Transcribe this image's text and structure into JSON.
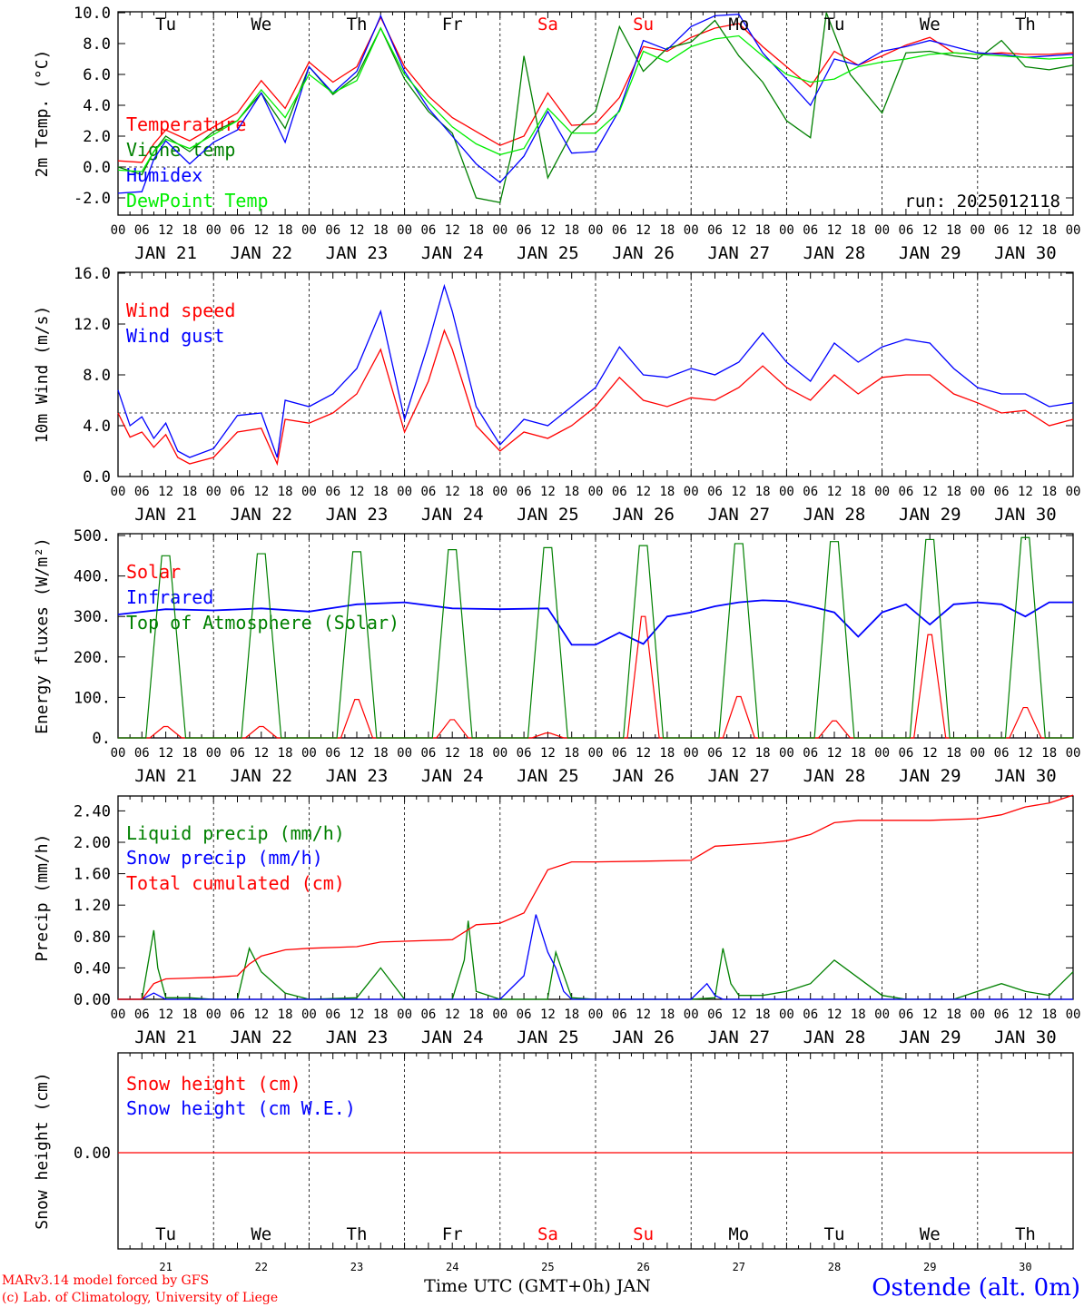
{
  "run_label": "run: 2025012118",
  "footer": {
    "model": "MARv3.14 model forced by GFS",
    "credit": "(c) Lab. of Climatology, University of Liege",
    "xaxis": "Time UTC (GMT+0h) JAN",
    "station": "Ostende (alt. 0m)"
  },
  "colors": {
    "red": "#ff0000",
    "green": "#008000",
    "blue": "#0000ff",
    "lime": "#00ee00"
  },
  "days": {
    "abbr": [
      "Tu",
      "We",
      "Th",
      "Fr",
      "Sa",
      "Su",
      "Mo",
      "Tu",
      "We",
      "Th"
    ],
    "weekend": [
      false,
      false,
      false,
      false,
      true,
      true,
      false,
      false,
      false,
      false
    ],
    "dates": [
      "JAN 21",
      "JAN 22",
      "JAN 23",
      "JAN 24",
      "JAN 25",
      "JAN 26",
      "JAN 27",
      "JAN 28",
      "JAN 29",
      "JAN 30"
    ],
    "numbers": [
      "21",
      "22",
      "23",
      "24",
      "25",
      "26",
      "27",
      "28",
      "29",
      "30"
    ],
    "hour_ticks": [
      "00",
      "06",
      "12",
      "18"
    ],
    "final_tick": "00"
  },
  "chart_data": [
    {
      "type": "line",
      "ylabel": "2m Temp. (°C)",
      "ylim": [
        -3,
        10
      ],
      "yticks": [
        "10.0",
        "8.0",
        "6.0",
        "4.0",
        "2.0",
        "0.0",
        "-2.0"
      ],
      "ytick_values": [
        10,
        8,
        6,
        4,
        2,
        0,
        -2
      ],
      "x_unit": "hours since JAN 21 00 UTC",
      "reference_line": 0,
      "series": [
        {
          "name": "Temperature",
          "color": "red",
          "x": [
            0,
            6,
            9,
            12,
            18,
            24,
            30,
            36,
            42,
            48,
            54,
            60,
            66,
            72,
            78,
            84,
            90,
            96,
            102,
            108,
            114,
            120,
            126,
            132,
            138,
            144,
            150,
            156,
            162,
            168,
            174,
            180,
            186,
            192,
            198,
            204,
            210,
            216,
            222,
            228,
            234,
            240
          ],
          "y": [
            0.4,
            0.3,
            1.5,
            2.4,
            1.7,
            2.6,
            3.5,
            5.6,
            3.8,
            6.8,
            5.5,
            6.5,
            9.7,
            6.5,
            4.6,
            3.2,
            2.3,
            1.4,
            2.0,
            4.8,
            2.7,
            2.8,
            4.5,
            7.8,
            7.5,
            8.4,
            9.0,
            9.3,
            7.8,
            6.5,
            5.2,
            7.5,
            6.6,
            7.2,
            7.9,
            8.4,
            7.4,
            7.3,
            7.4,
            7.3,
            7.3,
            7.4
          ]
        },
        {
          "name": "Vigne temp",
          "color": "green",
          "x": [
            0,
            6,
            9,
            12,
            18,
            24,
            30,
            36,
            42,
            48,
            54,
            60,
            66,
            72,
            78,
            84,
            90,
            96,
            99,
            102,
            108,
            114,
            120,
            126,
            132,
            138,
            144,
            150,
            156,
            162,
            168,
            174,
            178,
            184,
            192,
            198,
            204,
            210,
            216,
            222,
            228,
            234,
            240
          ],
          "y": [
            0.0,
            -0.5,
            1.0,
            2.0,
            1.0,
            2.3,
            3.0,
            4.8,
            2.5,
            6.5,
            4.7,
            5.9,
            9.0,
            5.7,
            3.6,
            2.2,
            -2.0,
            -2.3,
            1.0,
            7.2,
            -0.7,
            2.2,
            3.6,
            9.1,
            6.2,
            7.7,
            8.1,
            9.5,
            7.2,
            5.5,
            3.0,
            1.9,
            10.0,
            6.0,
            3.5,
            7.4,
            7.5,
            7.2,
            7.0,
            8.2,
            6.5,
            6.3,
            6.6
          ]
        },
        {
          "name": "Humidex",
          "color": "blue",
          "x": [
            0,
            6,
            9,
            12,
            18,
            24,
            30,
            36,
            42,
            48,
            54,
            60,
            66,
            72,
            78,
            84,
            90,
            96,
            102,
            108,
            114,
            120,
            126,
            132,
            138,
            144,
            150,
            156,
            162,
            168,
            174,
            180,
            186,
            192,
            198,
            204,
            210,
            216,
            222,
            228,
            234,
            240
          ],
          "y": [
            -1.7,
            -1.6,
            0.5,
            1.7,
            0.2,
            1.6,
            2.4,
            4.8,
            1.6,
            6.5,
            4.8,
            6.2,
            9.8,
            6.2,
            3.8,
            2.0,
            0.2,
            -1.0,
            0.7,
            3.6,
            0.9,
            1.0,
            3.7,
            8.2,
            7.6,
            9.1,
            9.8,
            9.9,
            7.4,
            5.7,
            4.0,
            7.0,
            6.6,
            7.5,
            7.8,
            8.2,
            7.8,
            7.4,
            7.3,
            7.1,
            7.2,
            7.3
          ]
        },
        {
          "name": "DewPoint Temp",
          "color": "lime",
          "x": [
            0,
            6,
            9,
            12,
            18,
            24,
            30,
            36,
            42,
            48,
            54,
            60,
            66,
            72,
            78,
            84,
            90,
            96,
            102,
            108,
            114,
            120,
            126,
            132,
            138,
            144,
            150,
            156,
            162,
            168,
            174,
            180,
            186,
            192,
            198,
            204,
            210,
            216,
            222,
            228,
            234,
            240
          ],
          "y": [
            -0.2,
            -0.3,
            1.0,
            1.8,
            1.2,
            2.1,
            3.0,
            5.0,
            3.2,
            6.0,
            4.8,
            5.6,
            9.0,
            6.0,
            4.2,
            2.6,
            1.5,
            0.8,
            1.2,
            3.8,
            2.2,
            2.2,
            3.6,
            7.5,
            6.8,
            7.8,
            8.3,
            8.5,
            7.2,
            6.0,
            5.5,
            5.7,
            6.5,
            6.8,
            7.0,
            7.3,
            7.4,
            7.3,
            7.2,
            7.1,
            7.0,
            7.1
          ]
        }
      ]
    },
    {
      "type": "line",
      "ylabel": "10m Wind (m/s)",
      "ylim": [
        0,
        16
      ],
      "yticks": [
        "16.0",
        "12.0",
        "8.0",
        "4.0",
        "0.0"
      ],
      "ytick_values": [
        16,
        12,
        8,
        4,
        0
      ],
      "x_unit": "hours since JAN 21 00 UTC",
      "reference_line": 5,
      "series": [
        {
          "name": "Wind speed",
          "color": "red",
          "x": [
            0,
            3,
            6,
            9,
            12,
            15,
            18,
            24,
            30,
            36,
            40,
            42,
            48,
            54,
            60,
            66,
            72,
            78,
            82,
            84,
            88,
            90,
            96,
            102,
            108,
            114,
            120,
            126,
            132,
            138,
            144,
            150,
            156,
            162,
            168,
            174,
            180,
            186,
            192,
            198,
            204,
            210,
            216,
            222,
            228,
            234,
            240
          ],
          "y": [
            5.0,
            3.1,
            3.5,
            2.3,
            3.3,
            1.5,
            1.0,
            1.5,
            3.5,
            3.8,
            1.0,
            4.5,
            4.2,
            5.0,
            6.5,
            10.0,
            3.5,
            7.5,
            11.5,
            10.0,
            6.0,
            4.0,
            2.0,
            3.5,
            3.0,
            4.0,
            5.5,
            7.8,
            6.0,
            5.5,
            6.2,
            6.0,
            7.0,
            8.7,
            7.0,
            6.0,
            8.0,
            6.5,
            7.8,
            8.0,
            8.0,
            6.5,
            5.8,
            5.0,
            5.2,
            4.0,
            4.5
          ]
        },
        {
          "name": "Wind gust",
          "color": "blue",
          "x": [
            0,
            3,
            6,
            9,
            12,
            15,
            18,
            24,
            30,
            36,
            40,
            42,
            48,
            54,
            60,
            66,
            72,
            78,
            82,
            84,
            88,
            90,
            96,
            102,
            108,
            114,
            120,
            126,
            132,
            138,
            144,
            150,
            156,
            162,
            168,
            174,
            180,
            186,
            192,
            198,
            204,
            210,
            216,
            222,
            228,
            234,
            240
          ],
          "y": [
            6.8,
            4.0,
            4.7,
            3.0,
            4.2,
            2.0,
            1.5,
            2.2,
            4.8,
            5.0,
            1.5,
            6.0,
            5.5,
            6.5,
            8.5,
            13.0,
            4.5,
            10.5,
            15.0,
            13.0,
            8.0,
            5.5,
            2.5,
            4.5,
            4.0,
            5.5,
            7.0,
            10.2,
            8.0,
            7.8,
            8.5,
            8.0,
            9.0,
            11.3,
            9.0,
            7.5,
            10.5,
            9.0,
            10.2,
            10.8,
            10.5,
            8.5,
            7.0,
            6.5,
            6.5,
            5.5,
            5.8
          ]
        }
      ]
    },
    {
      "type": "line",
      "ylabel": "Energy fluxes (W/m²)",
      "ylim": [
        0,
        500
      ],
      "yticks": [
        "500.",
        "400.",
        "300.",
        "200.",
        "100.",
        "0."
      ],
      "ytick_values": [
        500,
        400,
        300,
        200,
        100,
        0
      ],
      "x_unit": "hours since JAN 21 00 UTC",
      "series": [
        {
          "name": "Solar",
          "color": "red",
          "peaks": [
            28,
            28,
            95,
            45,
            12,
            300,
            102,
            42,
            255,
            75
          ]
        },
        {
          "name": "Infrared",
          "color": "blue",
          "x": [
            0,
            12,
            24,
            36,
            48,
            60,
            72,
            84,
            96,
            108,
            114,
            120,
            126,
            132,
            138,
            144,
            150,
            156,
            162,
            168,
            174,
            180,
            186,
            192,
            198,
            204,
            210,
            216,
            222,
            228,
            234,
            240
          ],
          "y": [
            305,
            318,
            315,
            320,
            312,
            330,
            335,
            320,
            318,
            320,
            230,
            230,
            260,
            232,
            300,
            310,
            325,
            335,
            340,
            338,
            325,
            310,
            250,
            310,
            330,
            280,
            330,
            335,
            330,
            300,
            335,
            335
          ]
        },
        {
          "name": "Top of Atmosphere (Solar)",
          "color": "green",
          "peaks": [
            450,
            455,
            460,
            465,
            470,
            475,
            480,
            485,
            490,
            495
          ]
        }
      ]
    },
    {
      "type": "line",
      "ylabel": "Precip (mm/h)",
      "ylim": [
        0,
        2.6
      ],
      "yticks": [
        "2.40",
        "2.00",
        "1.60",
        "1.20",
        "0.80",
        "0.40",
        "0.00"
      ],
      "ytick_values": [
        2.4,
        2.0,
        1.6,
        1.2,
        0.8,
        0.4,
        0.0
      ],
      "x_unit": "hours since JAN 21 00 UTC",
      "series": [
        {
          "name": "Liquid precip (mm/h)",
          "color": "green",
          "x": [
            0,
            6,
            9,
            10,
            12,
            18,
            24,
            30,
            33,
            36,
            42,
            48,
            60,
            66,
            72,
            84,
            87,
            88,
            90,
            96,
            102,
            108,
            108,
            110,
            114,
            120,
            144,
            150,
            152,
            154,
            156,
            162,
            168,
            174,
            180,
            192,
            198,
            204,
            210,
            216,
            222,
            228,
            234,
            240
          ],
          "y": [
            0,
            0,
            0.88,
            0.4,
            0.02,
            0.02,
            0,
            0,
            0.65,
            0.35,
            0.08,
            0,
            0.02,
            0.4,
            0,
            0,
            0.5,
            1.0,
            0.1,
            0,
            0,
            0,
            0.02,
            0.6,
            0.02,
            0,
            0,
            0.02,
            0.65,
            0.2,
            0.05,
            0.05,
            0.1,
            0.2,
            0.5,
            0.05,
            0,
            0,
            0,
            0.1,
            0.2,
            0.1,
            0.05,
            0.35
          ]
        },
        {
          "name": "Snow precip (mm/h)",
          "color": "blue",
          "x": [
            0,
            6,
            9,
            12,
            24,
            84,
            96,
            102,
            105,
            108,
            110,
            112,
            114,
            120,
            144,
            148,
            150,
            152,
            240
          ],
          "y": [
            0,
            0,
            0.08,
            0,
            0,
            0,
            0,
            0.3,
            1.08,
            0.6,
            0.4,
            0.1,
            0,
            0,
            0,
            0.2,
            0.05,
            0,
            0
          ]
        },
        {
          "name": "Total cumulated (cm)",
          "color": "red",
          "x": [
            0,
            6,
            9,
            12,
            18,
            24,
            30,
            33,
            36,
            42,
            48,
            60,
            66,
            72,
            84,
            90,
            96,
            102,
            108,
            114,
            120,
            132,
            144,
            150,
            156,
            162,
            168,
            174,
            180,
            186,
            192,
            204,
            216,
            222,
            228,
            234,
            240
          ],
          "y": [
            0,
            0,
            0.2,
            0.26,
            0.27,
            0.28,
            0.3,
            0.45,
            0.55,
            0.63,
            0.65,
            0.67,
            0.73,
            0.74,
            0.76,
            0.95,
            0.97,
            1.1,
            1.65,
            1.75,
            1.75,
            1.76,
            1.77,
            1.95,
            1.97,
            1.99,
            2.02,
            2.1,
            2.25,
            2.28,
            2.28,
            2.28,
            2.3,
            2.35,
            2.45,
            2.5,
            2.6
          ]
        }
      ]
    },
    {
      "type": "line",
      "ylabel": "Snow height (cm)",
      "yticks": [
        "0.00"
      ],
      "ytick_values": [
        0.0
      ],
      "x_unit": "hours since JAN 21 00 UTC",
      "series": [
        {
          "name": "Snow height (cm)",
          "color": "red",
          "x": [
            0,
            240
          ],
          "y": [
            0,
            0
          ]
        },
        {
          "name": "Snow height (cm W.E.)",
          "color": "blue",
          "x": [],
          "y": []
        }
      ]
    }
  ]
}
